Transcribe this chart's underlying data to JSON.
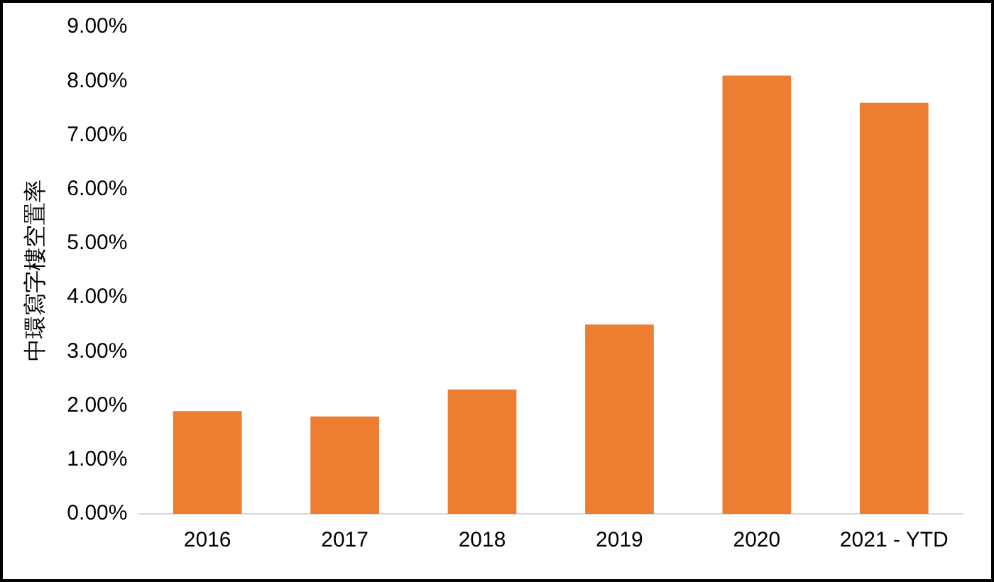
{
  "chart_data": {
    "type": "bar",
    "ylabel": "中環寫字樓空置率",
    "categories": [
      "2016",
      "2017",
      "2018",
      "2019",
      "2020",
      "2021 - YTD"
    ],
    "values": [
      1.9,
      1.8,
      2.3,
      3.5,
      8.1,
      7.6
    ],
    "color": "#ed7d31",
    "ylim": [
      0,
      9
    ],
    "yticks": [
      {
        "value": 0,
        "label": "0.00%"
      },
      {
        "value": 1,
        "label": "1.00%"
      },
      {
        "value": 2,
        "label": "2.00%"
      },
      {
        "value": 3,
        "label": "3.00%"
      },
      {
        "value": 4,
        "label": "4.00%"
      },
      {
        "value": 5,
        "label": "5.00%"
      },
      {
        "value": 6,
        "label": "6.00%"
      },
      {
        "value": 7,
        "label": "7.00%"
      },
      {
        "value": 8,
        "label": "8.00%"
      },
      {
        "value": 9,
        "label": "9.00%"
      }
    ],
    "grid": false,
    "legend": false
  }
}
